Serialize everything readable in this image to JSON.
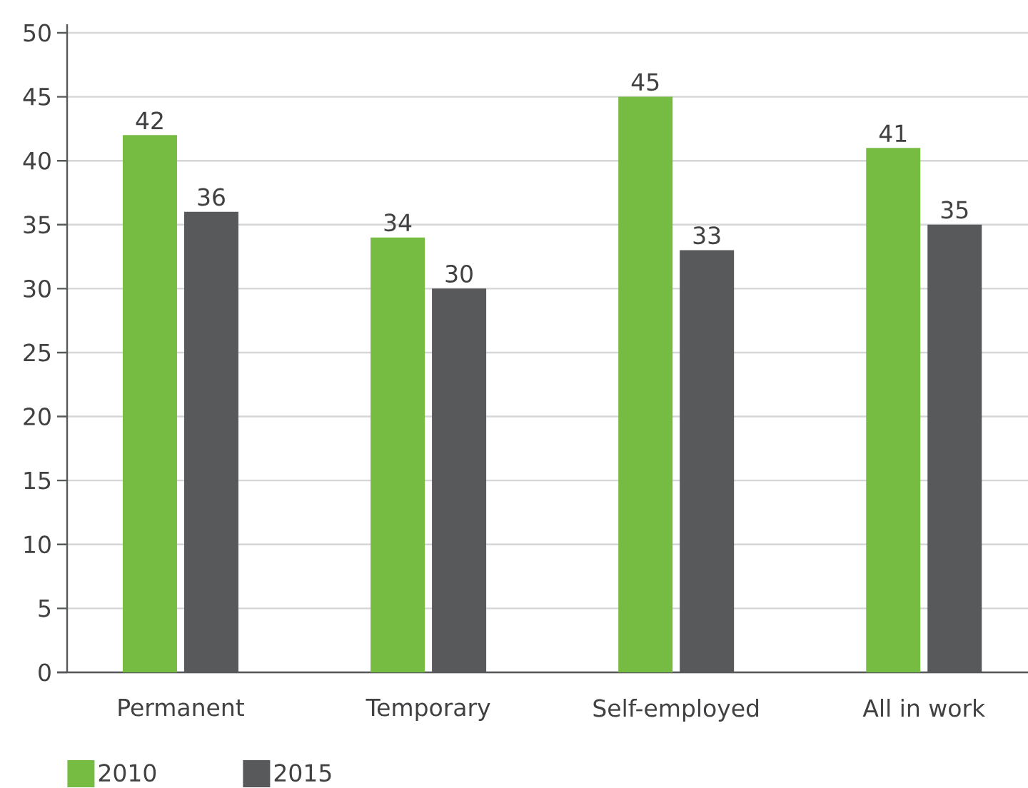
{
  "chart_data": {
    "type": "bar",
    "categories": [
      "Permanent",
      "Temporary",
      "Self-employed",
      "All in work"
    ],
    "series": [
      {
        "name": "2010",
        "color": "#76bc43",
        "values": [
          42,
          34,
          45,
          41
        ]
      },
      {
        "name": "2015",
        "color": "#58595b",
        "values": [
          36,
          30,
          33,
          35
        ]
      }
    ],
    "ylim": [
      0,
      50
    ],
    "yticks": [
      0,
      5,
      10,
      15,
      20,
      25,
      30,
      35,
      40,
      45,
      50
    ],
    "grid": "y",
    "legend": "bottom left",
    "data_labels": true
  }
}
